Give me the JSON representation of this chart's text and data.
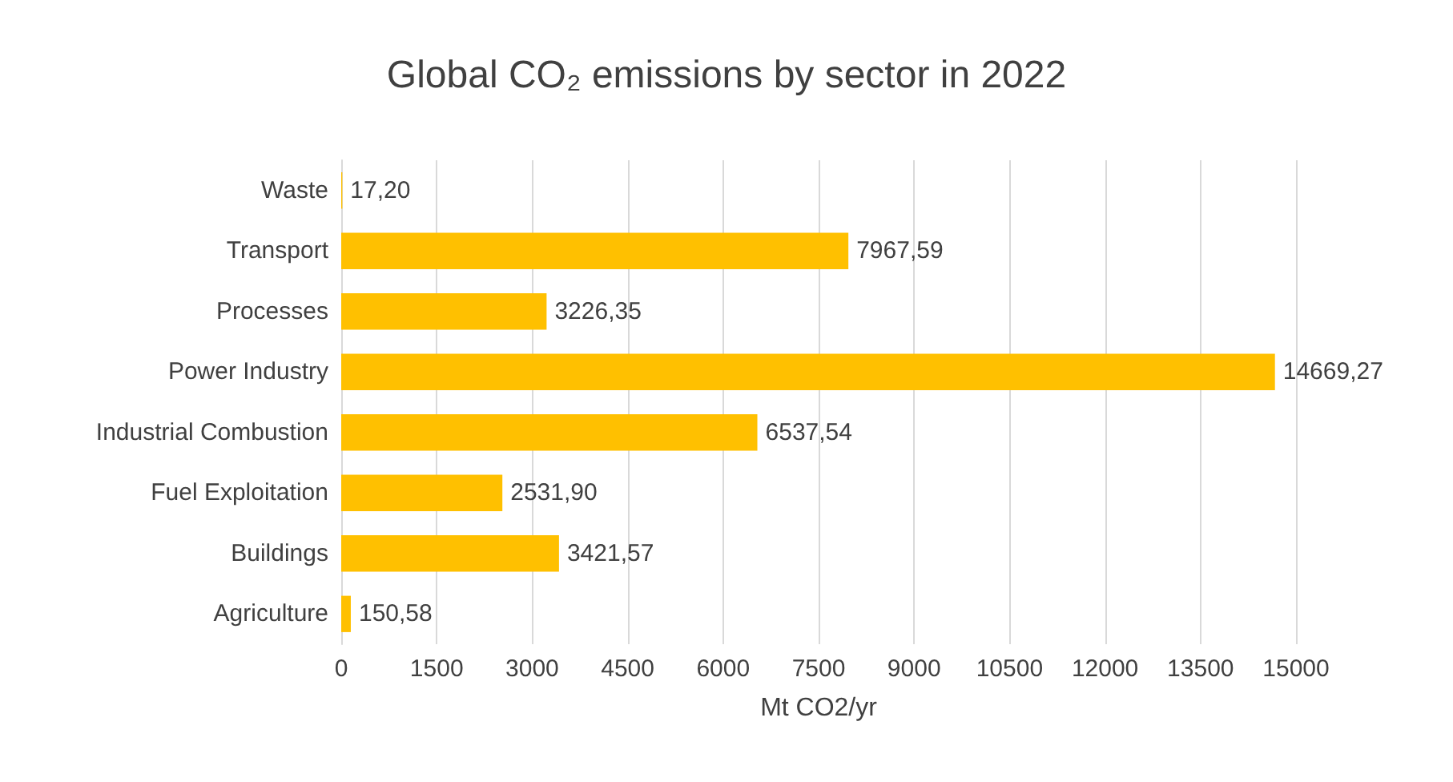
{
  "chart_data": {
    "type": "bar",
    "orientation": "horizontal",
    "title": "Global CO₂ emissions by sector in 2022",
    "xlabel": "Mt CO2/yr",
    "categories": [
      "Waste",
      "Transport",
      "Processes",
      "Power Industry",
      "Industrial Combustion",
      "Fuel Exploitation",
      "Buildings",
      "Agriculture"
    ],
    "values": [
      17.2,
      7967.59,
      3226.35,
      14669.27,
      6537.54,
      2531.9,
      3421.57,
      150.58
    ],
    "value_labels": [
      "17,20",
      "7967,59",
      "3226,35",
      "14669,27",
      "6537,54",
      "2531,90",
      "3421,57",
      "150,58"
    ],
    "color": "#ffc000",
    "xlim": [
      0,
      15000
    ],
    "xticks": [
      0,
      1500,
      3000,
      4500,
      6000,
      7500,
      9000,
      10500,
      12000,
      13500,
      15000
    ],
    "grid": "x"
  }
}
